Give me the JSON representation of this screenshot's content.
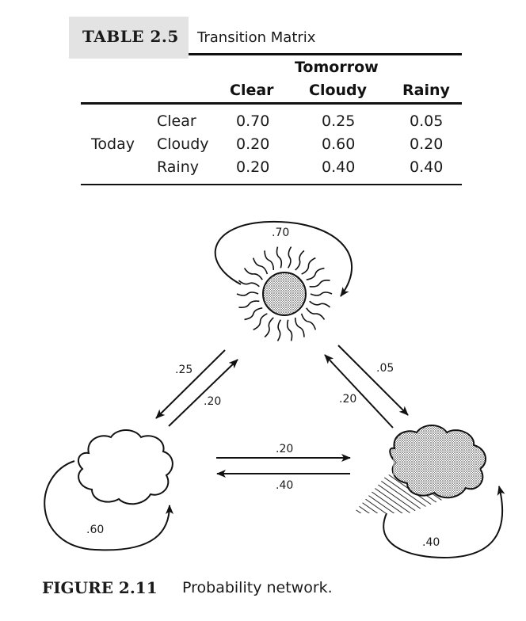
{
  "table": {
    "label": "TABLE 2.5",
    "title": "Transition Matrix",
    "group_header": "Tomorrow",
    "col_headers": [
      "Clear",
      "Cloudy",
      "Rainy"
    ],
    "row_group": "Today",
    "rows": [
      {
        "state": "Clear",
        "values": [
          "0.70",
          "0.25",
          "0.05"
        ]
      },
      {
        "state": "Cloudy",
        "values": [
          "0.20",
          "0.60",
          "0.20"
        ]
      },
      {
        "state": "Rainy",
        "values": [
          "0.20",
          "0.40",
          "0.40"
        ]
      }
    ]
  },
  "network": {
    "nodes": [
      {
        "id": "clear",
        "icon": "sun-icon"
      },
      {
        "id": "cloudy",
        "icon": "cloud-icon"
      },
      {
        "id": "rainy",
        "icon": "rain-cloud-icon"
      }
    ],
    "edges": [
      {
        "from": "clear",
        "to": "clear",
        "label": ".70"
      },
      {
        "from": "clear",
        "to": "cloudy",
        "label": ".25"
      },
      {
        "from": "cloudy",
        "to": "clear",
        "label": ".20"
      },
      {
        "from": "clear",
        "to": "rainy",
        "label": ".05"
      },
      {
        "from": "rainy",
        "to": "clear",
        "label": ".20"
      },
      {
        "from": "cloudy",
        "to": "rainy",
        "label": ".20"
      },
      {
        "from": "rainy",
        "to": "cloudy",
        "label": ".40"
      },
      {
        "from": "cloudy",
        "to": "cloudy",
        "label": ".60"
      },
      {
        "from": "rainy",
        "to": "rainy",
        "label": ".40"
      }
    ]
  },
  "figure": {
    "label": "FIGURE 2.11",
    "title": "Probability network."
  }
}
